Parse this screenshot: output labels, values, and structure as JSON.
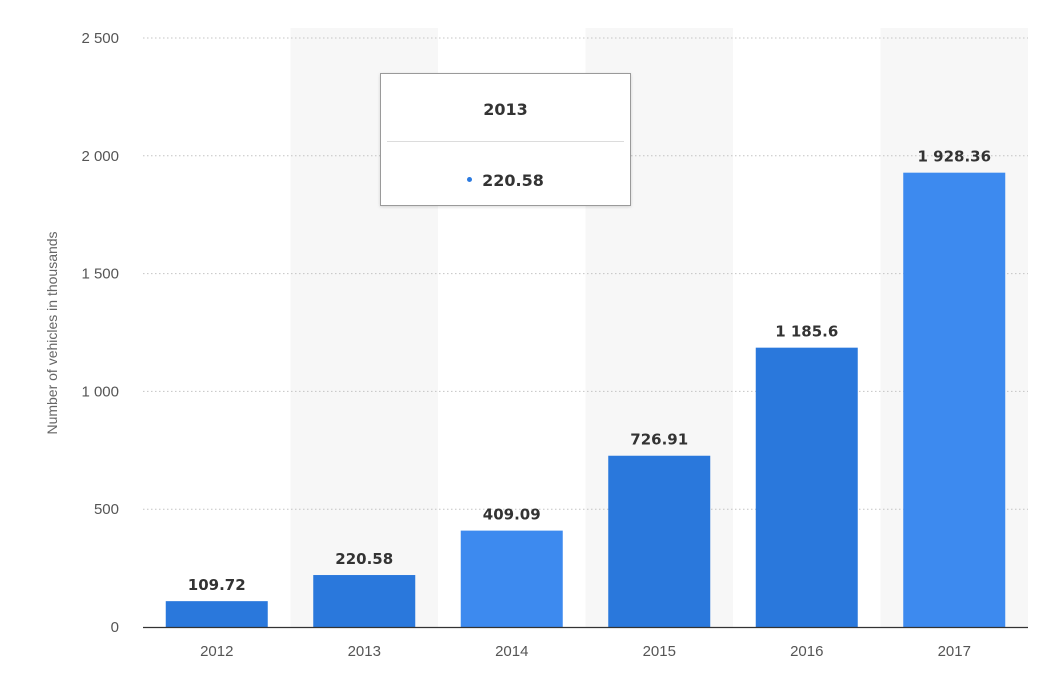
{
  "colors": {
    "bar_dark": "#2a78dc",
    "bar_light": "#3d8aef",
    "band": "#f7f7f7",
    "grid": "#c4c4c4",
    "axis": "#333333"
  },
  "chart_data": {
    "type": "bar",
    "categories": [
      "2012",
      "2013",
      "2014",
      "2015",
      "2016",
      "2017"
    ],
    "values": [
      109.72,
      220.58,
      409.09,
      726.91,
      1185.6,
      1928.36
    ],
    "value_labels": [
      "109.72",
      "220.58",
      "409.09",
      "726.91",
      "1 185.6",
      "1 928.36"
    ],
    "bar_shade": [
      "dark",
      "dark",
      "light",
      "dark",
      "dark",
      "light"
    ],
    "ylabel": "Number of vehicles in thousands",
    "xlabel": "",
    "ylim": [
      0,
      2500
    ],
    "yticks": [
      0,
      500,
      1000,
      1500,
      2000,
      2500
    ],
    "ytick_labels": [
      "0",
      "500",
      "1 000",
      "1 500",
      "2 000",
      "2 500"
    ],
    "grid": true,
    "grid_style": "dotted"
  },
  "tooltip": {
    "title": "2013",
    "value": "220.58"
  }
}
